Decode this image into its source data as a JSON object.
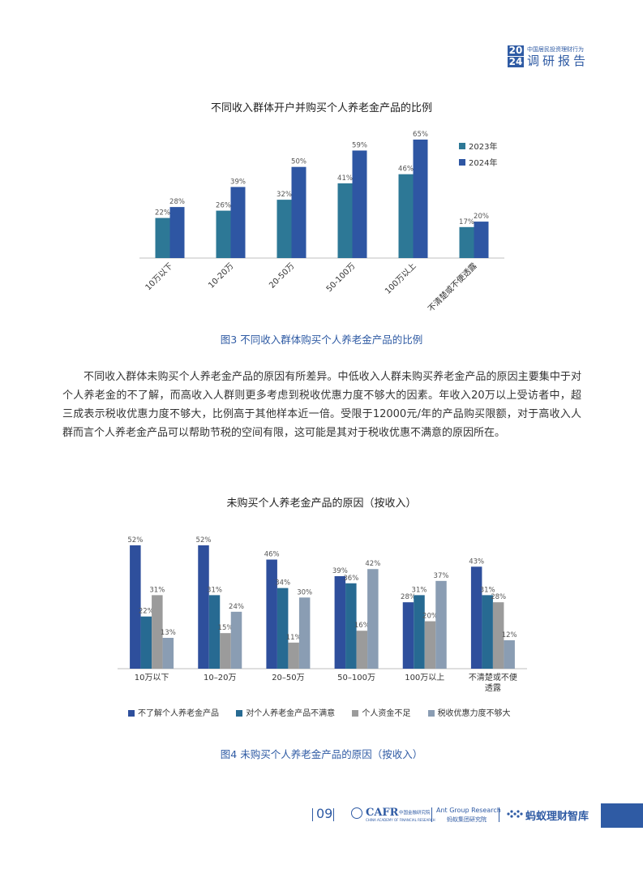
{
  "header": {
    "year_top": "20",
    "year_bottom": "24",
    "small_title": "中国居民投资理财行为",
    "big_title": "调研报告"
  },
  "chart1_title": "不同收入群体开户并购买个人养老金产品的比例",
  "chart2_title": "未购买个人养老金产品的原因（按收入）",
  "captions": {
    "fig3": "图3  不同收入群体购买个人养老金产品的比例",
    "fig4": "图4  未购买个人养老金产品的原因（按收入）"
  },
  "body": {
    "line1": "不同收入群体未购买个人养老金产品的原因有所差异。中低收入人群未购买养老金产品的原因主要集中于对个人养老金的不了解，而高收入人群则更多考虑到税收优惠力度不够大的因素。年收入20万以上受访者中，超三成表示税收优惠力度不够大，比例高于其他样本近一倍。受限于12000元/年的产品购买限额，对于高收入人群而言个人养老金产品可以帮助节税的空间有限，这可能是其对于税收优惠不满意的原因所在。"
  },
  "colors": {
    "series_2023": "#2d7896",
    "series_2024": "#2e56a3",
    "dark_blue": "#2e4f9c",
    "teal_blue": "#276a92",
    "gray": "#9b9b9b",
    "gray_blue": "#8a9db3",
    "accent": "#2f5ba4"
  },
  "chart_data": [
    {
      "type": "bar",
      "title": "不同收入群体开户并购买个人养老金产品的比例",
      "categories": [
        "10万以下",
        "10-20万",
        "20-50万",
        "50-100万",
        "100万以上",
        "不清楚或不便透露"
      ],
      "series": [
        {
          "name": "2023年",
          "values": [
            22,
            26,
            32,
            41,
            46,
            17
          ],
          "labels": [
            "22%",
            "26%",
            "32%",
            "41%",
            "46%",
            "17%"
          ]
        },
        {
          "name": "2024年",
          "values": [
            28,
            39,
            50,
            59,
            65,
            20
          ],
          "labels": [
            "28%",
            "39%",
            "50%",
            "59%",
            "65%",
            "20%"
          ]
        }
      ],
      "ylim": [
        0,
        70
      ],
      "legend": "top-right",
      "grid": false
    },
    {
      "type": "bar",
      "title": "未购买个人养老金产品的原因（按收入）",
      "categories": [
        "10万以下",
        "10–20万",
        "20–50万",
        "50–100万",
        "100万以上",
        "不清楚或不便透露"
      ],
      "category_lines": [
        [
          "10万以下"
        ],
        [
          "10–20万"
        ],
        [
          "20–50万"
        ],
        [
          "50–100万"
        ],
        [
          "100万以上"
        ],
        [
          "不清楚或不便",
          "透露"
        ]
      ],
      "series": [
        {
          "name": "不了解个人养老金产品",
          "values": [
            52,
            52,
            46,
            39,
            28,
            43
          ],
          "labels": [
            "52%",
            "52%",
            "46%",
            "39%",
            "28%",
            "43%"
          ]
        },
        {
          "name": "对个人养老金产品不满意",
          "values": [
            22,
            31,
            34,
            36,
            31,
            31
          ],
          "labels": [
            "22%",
            "31%",
            "34%",
            "36%",
            "31%",
            "31%"
          ]
        },
        {
          "name": "个人资金不足",
          "values": [
            31,
            15,
            11,
            16,
            20,
            28
          ],
          "labels": [
            "31%",
            "15%",
            "11%",
            "16%",
            "20%",
            "28%"
          ]
        },
        {
          "name": "税收优惠力度不够大",
          "values": [
            13,
            24,
            30,
            42,
            37,
            12
          ],
          "labels": [
            "13%",
            "24%",
            "30%",
            "42%",
            "37%",
            "12%"
          ]
        }
      ],
      "ylim": [
        0,
        55
      ],
      "legend": "bottom",
      "grid": false
    }
  ],
  "footer": {
    "page_number": "09",
    "cafr_word": "CAFR",
    "cafr_cn": "中国金融研究院",
    "cafr_en": "CHINA ACADEMY OF FINANCIAL RESEARCH",
    "ant_en": "Ant Group Research",
    "ant_cn": "蚂蚁集团研究院",
    "zhiku": "蚂蚁理财智库"
  }
}
